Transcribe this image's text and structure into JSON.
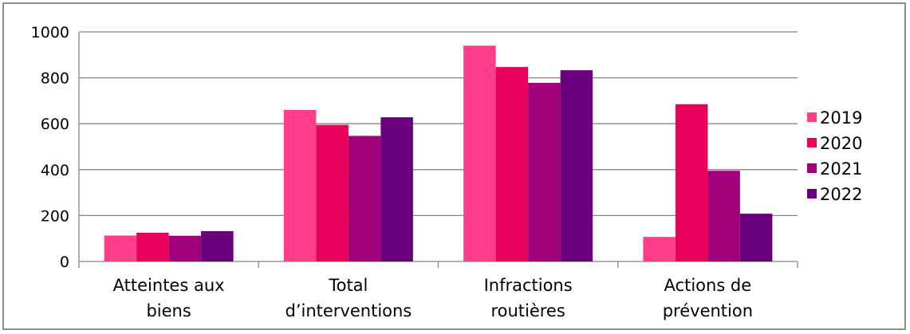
{
  "chart_data": {
    "type": "bar",
    "categories": [
      [
        "Atteintes aux",
        "biens"
      ],
      [
        "Total",
        "d’interventions"
      ],
      [
        "Infractions",
        "routières"
      ],
      [
        "Actions de",
        "prévention"
      ]
    ],
    "series": [
      {
        "name": "2019",
        "color": "#ff3d8b",
        "values": [
          113,
          660,
          940,
          107
        ]
      },
      {
        "name": "2020",
        "color": "#e8005a",
        "values": [
          125,
          595,
          847,
          685
        ]
      },
      {
        "name": "2021",
        "color": "#a0007a",
        "values": [
          112,
          547,
          778,
          395
        ]
      },
      {
        "name": "2022",
        "color": "#6a007c",
        "values": [
          132,
          628,
          833,
          208
        ]
      }
    ],
    "yticks": [
      "0",
      "200",
      "400",
      "600",
      "800",
      "1000"
    ],
    "ylim": [
      0,
      1000
    ],
    "grid": true,
    "legend_position": "right"
  }
}
